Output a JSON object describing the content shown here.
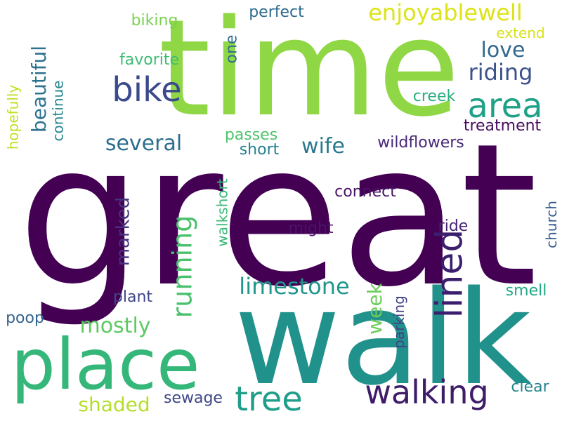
{
  "word_cloud": {
    "background": "#ffffff",
    "words": [
      {
        "text": "great",
        "color": "#440154",
        "vertical": false
      },
      {
        "text": "time",
        "color": "#8fd744",
        "vertical": false
      },
      {
        "text": "walk",
        "color": "#21918c",
        "vertical": false
      },
      {
        "text": "place",
        "color": "#35b779",
        "vertical": false
      },
      {
        "text": "lined",
        "color": "#3b1f6e",
        "vertical": true
      },
      {
        "text": "walking",
        "color": "#3e1c6a",
        "vertical": false
      },
      {
        "text": "tree",
        "color": "#1f9e89",
        "vertical": false
      },
      {
        "text": "bike",
        "color": "#3b4a8c",
        "vertical": false
      },
      {
        "text": "area",
        "color": "#1fa187",
        "vertical": false
      },
      {
        "text": "running",
        "color": "#4ac16d",
        "vertical": true
      },
      {
        "text": "limestone",
        "color": "#1f968b",
        "vertical": false
      },
      {
        "text": "beautiful",
        "color": "#2c728e",
        "vertical": true
      },
      {
        "text": "enjoyablewell",
        "color": "#dde318",
        "vertical": false
      },
      {
        "text": "riding",
        "color": "#3b528b",
        "vertical": false
      },
      {
        "text": "several",
        "color": "#2d6e8e",
        "vertical": false
      },
      {
        "text": "mostly",
        "color": "#5ec962",
        "vertical": false
      },
      {
        "text": "shaded",
        "color": "#b5de2b",
        "vertical": false
      },
      {
        "text": "week",
        "color": "#6ccd5a",
        "vertical": true
      },
      {
        "text": "marked",
        "color": "#46327e",
        "vertical": true
      },
      {
        "text": "wife",
        "color": "#2a788e",
        "vertical": false
      },
      {
        "text": "love",
        "color": "#31688e",
        "vertical": false
      },
      {
        "text": "wildflowers",
        "color": "#482878",
        "vertical": false
      },
      {
        "text": "treatment",
        "color": "#470d60",
        "vertical": false
      },
      {
        "text": "connect",
        "color": "#471365",
        "vertical": false
      },
      {
        "text": "might",
        "color": "#481467",
        "vertical": false
      },
      {
        "text": "ride",
        "color": "#482475",
        "vertical": false
      },
      {
        "text": "plant",
        "color": "#404688",
        "vertical": false
      },
      {
        "text": "smell",
        "color": "#22a884",
        "vertical": false
      },
      {
        "text": "clear",
        "color": "#25838e",
        "vertical": false
      },
      {
        "text": "sewage",
        "color": "#3f4889",
        "vertical": false
      },
      {
        "text": "poop",
        "color": "#33638d",
        "vertical": false
      },
      {
        "text": "perfect",
        "color": "#2f6c8e",
        "vertical": false
      },
      {
        "text": "biking",
        "color": "#7ad151",
        "vertical": false
      },
      {
        "text": "favorite",
        "color": "#3dbc74",
        "vertical": false
      },
      {
        "text": "creek",
        "color": "#29af7f",
        "vertical": false
      },
      {
        "text": "passes",
        "color": "#4ec36b",
        "vertical": false
      },
      {
        "text": "short",
        "color": "#26818e",
        "vertical": false
      },
      {
        "text": "extend",
        "color": "#d8e219",
        "vertical": false
      },
      {
        "text": "one",
        "color": "#2e6f8e",
        "vertical": true
      },
      {
        "text": "continue",
        "color": "#24868e",
        "vertical": true
      },
      {
        "text": "hopefully",
        "color": "#c2df23",
        "vertical": true
      },
      {
        "text": "walkshort",
        "color": "#38b977",
        "vertical": true
      },
      {
        "text": "parking",
        "color": "#424186",
        "vertical": true
      },
      {
        "text": "church",
        "color": "#365c8d",
        "vertical": true
      }
    ]
  }
}
